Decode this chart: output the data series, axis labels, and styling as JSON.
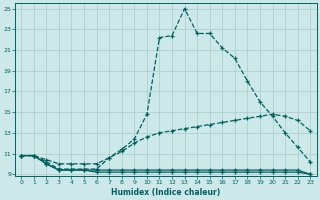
{
  "xlabel": "Humidex (Indice chaleur)",
  "background_color": "#cce8e8",
  "grid_color": "#aacccc",
  "line_color": "#006060",
  "xlim": [
    -0.5,
    23.5
  ],
  "ylim": [
    8.8,
    25.5
  ],
  "xticks": [
    0,
    1,
    2,
    3,
    4,
    5,
    6,
    7,
    8,
    9,
    10,
    11,
    12,
    13,
    14,
    15,
    16,
    17,
    18,
    19,
    20,
    21,
    22,
    23
  ],
  "yticks": [
    9,
    11,
    13,
    15,
    17,
    19,
    21,
    23,
    25
  ],
  "curve1_x": [
    0,
    1,
    2,
    3,
    4,
    5,
    6,
    7,
    8,
    9,
    10,
    11,
    12,
    13,
    14,
    15,
    16,
    17,
    18,
    19,
    20,
    21,
    22,
    23
  ],
  "curve1_y": [
    10.8,
    10.8,
    10.2,
    9.5,
    9.5,
    9.5,
    9.5,
    10.6,
    11.4,
    12.4,
    14.8,
    22.2,
    22.4,
    25.0,
    22.6,
    22.6,
    21.2,
    20.2,
    18.0,
    16.0,
    14.6,
    13.0,
    11.6,
    10.2
  ],
  "curve2_x": [
    0,
    1,
    2,
    3,
    4,
    5,
    6,
    7,
    8,
    9,
    10,
    11,
    12,
    13,
    14,
    15,
    16,
    17,
    18,
    19,
    20,
    21,
    22,
    23
  ],
  "curve2_y": [
    10.8,
    10.8,
    10.4,
    10.0,
    10.0,
    10.0,
    10.0,
    10.6,
    11.2,
    12.0,
    12.6,
    13.0,
    13.2,
    13.4,
    13.6,
    13.8,
    14.0,
    14.2,
    14.4,
    14.6,
    14.8,
    14.6,
    14.2,
    13.2
  ],
  "curve3_x": [
    0,
    1,
    2,
    3,
    4,
    5,
    6,
    7,
    8,
    9,
    10,
    11,
    12,
    13,
    14,
    15,
    16,
    17,
    18,
    19,
    20,
    21,
    22,
    23
  ],
  "curve3_y": [
    10.8,
    10.8,
    10.0,
    9.4,
    9.4,
    9.4,
    9.4,
    9.4,
    9.4,
    9.4,
    9.4,
    9.4,
    9.4,
    9.4,
    9.4,
    9.4,
    9.4,
    9.4,
    9.4,
    9.4,
    9.4,
    9.4,
    9.4,
    9.0
  ],
  "curve4_x": [
    0,
    1,
    2,
    3,
    4,
    5,
    6,
    7,
    8,
    9,
    10,
    11,
    12,
    13,
    14,
    15,
    16,
    17,
    18,
    19,
    20,
    21,
    22,
    23
  ],
  "curve4_y": [
    10.8,
    10.8,
    10.0,
    9.4,
    9.4,
    9.4,
    9.2,
    9.2,
    9.2,
    9.2,
    9.2,
    9.2,
    9.2,
    9.2,
    9.2,
    9.2,
    9.2,
    9.2,
    9.2,
    9.2,
    9.2,
    9.2,
    9.2,
    9.0
  ]
}
